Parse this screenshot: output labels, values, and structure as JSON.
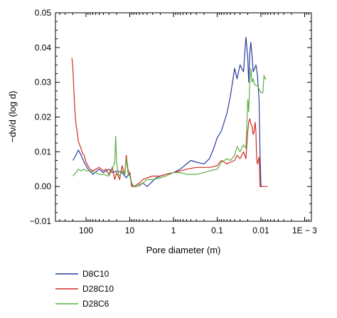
{
  "chart_data": {
    "type": "line",
    "xlabel": "Pore diameter (m)",
    "ylabel": "−dν/d (log d)",
    "x_scale": "log",
    "x_reversed": true,
    "xlim": [
      500,
      0.0007
    ],
    "ylim": [
      -0.01,
      0.05
    ],
    "x_ticks": [
      {
        "value": 100,
        "label": "100"
      },
      {
        "value": 10,
        "label": "10"
      },
      {
        "value": 1,
        "label": "1"
      },
      {
        "value": 0.1,
        "label": "0.1"
      },
      {
        "value": 0.01,
        "label": "0.01"
      },
      {
        "value": 0.001,
        "label": "1E − 3"
      }
    ],
    "y_ticks": [
      {
        "value": -0.01,
        "label": "−0.01"
      },
      {
        "value": 0.0,
        "label": "0.00"
      },
      {
        "value": 0.01,
        "label": "0.01"
      },
      {
        "value": 0.02,
        "label": "0.02"
      },
      {
        "value": 0.03,
        "label": "0.03"
      },
      {
        "value": 0.04,
        "label": "0.04"
      },
      {
        "value": 0.05,
        "label": "0.05"
      }
    ],
    "grid": false,
    "legend_position": "below",
    "series": [
      {
        "name": "D8C10",
        "color": "#2a3d9e",
        "x": [
          200,
          170,
          150,
          130,
          110,
          90,
          70,
          50,
          40,
          30,
          25,
          20,
          15,
          12,
          10,
          9,
          8,
          7,
          6,
          5,
          4,
          3,
          2.5,
          2,
          1.5,
          1,
          0.7,
          0.5,
          0.4,
          0.3,
          0.2,
          0.15,
          0.12,
          0.1,
          0.08,
          0.06,
          0.05,
          0.04,
          0.035,
          0.03,
          0.025,
          0.022,
          0.02,
          0.019,
          0.018,
          0.017,
          0.016,
          0.015,
          0.014,
          0.013,
          0.012,
          0.011,
          0.0105,
          0.01,
          0.0095,
          0.009
        ],
        "y": [
          0.0075,
          0.009,
          0.0105,
          0.009,
          0.007,
          0.005,
          0.0035,
          0.005,
          0.004,
          0.005,
          0.004,
          0.0045,
          0.004,
          0.0025,
          0.004,
          0.0005,
          0.0,
          0.0,
          0.0003,
          0.001,
          0.0,
          0.0015,
          0.0025,
          0.003,
          0.0035,
          0.004,
          0.005,
          0.0065,
          0.0075,
          0.007,
          0.0065,
          0.008,
          0.011,
          0.014,
          0.016,
          0.021,
          0.026,
          0.034,
          0.031,
          0.035,
          0.033,
          0.043,
          0.037,
          0.03,
          0.038,
          0.0415,
          0.038,
          0.033,
          0.034,
          0.035,
          0.032,
          0.025,
          0.01,
          0.0,
          0.0,
          0.0
        ]
      },
      {
        "name": "D28C10",
        "color": "#cf2e1f",
        "x": [
          210,
          200,
          190,
          180,
          170,
          160,
          150,
          140,
          130,
          120,
          110,
          100,
          90,
          80,
          70,
          60,
          50,
          40,
          35,
          30,
          25,
          22,
          20,
          17,
          15,
          13,
          12,
          11,
          10,
          9,
          8,
          7,
          6,
          5,
          4,
          3,
          2,
          1.5,
          1,
          0.7,
          0.5,
          0.3,
          0.2,
          0.15,
          0.1,
          0.08,
          0.06,
          0.05,
          0.04,
          0.035,
          0.03,
          0.025,
          0.022,
          0.02,
          0.019,
          0.018,
          0.017,
          0.016,
          0.015,
          0.0145,
          0.014,
          0.0135,
          0.013,
          0.0125,
          0.012,
          0.0115,
          0.011,
          0.0105,
          0.01,
          0.009,
          0.008,
          0.007
        ],
        "y": [
          0.037,
          0.034,
          0.028,
          0.022,
          0.018,
          0.016,
          0.013,
          0.012,
          0.011,
          0.0095,
          0.009,
          0.007,
          0.006,
          0.005,
          0.0045,
          0.005,
          0.0055,
          0.0045,
          0.005,
          0.0035,
          0.0055,
          0.002,
          0.004,
          0.002,
          0.006,
          0.0035,
          0.009,
          0.005,
          0.0035,
          0.0,
          0.0,
          0.0005,
          0.001,
          0.002,
          0.0025,
          0.003,
          0.003,
          0.0035,
          0.004,
          0.0045,
          0.005,
          0.0055,
          0.0055,
          0.0055,
          0.006,
          0.0075,
          0.0065,
          0.007,
          0.0075,
          0.009,
          0.008,
          0.01,
          0.008,
          0.016,
          0.0185,
          0.0195,
          0.018,
          0.0175,
          0.015,
          0.0155,
          0.017,
          0.0185,
          0.0155,
          0.008,
          0.0065,
          0.0075,
          0.0085,
          0.0,
          0.0,
          0.0,
          0.0,
          0.0
        ]
      },
      {
        "name": "D28C6",
        "color": "#5ab042",
        "x": [
          200,
          170,
          150,
          130,
          110,
          100,
          80,
          60,
          50,
          40,
          30,
          25,
          22,
          21,
          20,
          19,
          18,
          17,
          15,
          13,
          12,
          11,
          10,
          9,
          8,
          7,
          6,
          5,
          4,
          3,
          2,
          1.5,
          1,
          0.7,
          0.5,
          0.3,
          0.2,
          0.15,
          0.1,
          0.08,
          0.06,
          0.05,
          0.04,
          0.035,
          0.03,
          0.025,
          0.022,
          0.02,
          0.019,
          0.018,
          0.017,
          0.016,
          0.015,
          0.014,
          0.013,
          0.012,
          0.011,
          0.01,
          0.009,
          0.0085,
          0.008,
          0.0075
        ],
        "y": [
          0.003,
          0.004,
          0.005,
          0.0045,
          0.005,
          0.0045,
          0.0045,
          0.004,
          0.0035,
          0.0035,
          0.003,
          0.005,
          0.007,
          0.0145,
          0.007,
          0.005,
          0.0035,
          0.003,
          0.0045,
          0.0035,
          0.008,
          0.004,
          0.003,
          0.001,
          0.0,
          0.0,
          0.0005,
          0.001,
          0.002,
          0.002,
          0.0025,
          0.003,
          0.004,
          0.004,
          0.0035,
          0.0035,
          0.004,
          0.0045,
          0.005,
          0.007,
          0.008,
          0.0075,
          0.009,
          0.0115,
          0.01,
          0.012,
          0.011,
          0.025,
          0.0215,
          0.03,
          0.034,
          0.03,
          0.031,
          0.0295,
          0.029,
          0.029,
          0.028,
          0.027,
          0.027,
          0.032,
          0.031,
          0.031
        ]
      }
    ]
  }
}
